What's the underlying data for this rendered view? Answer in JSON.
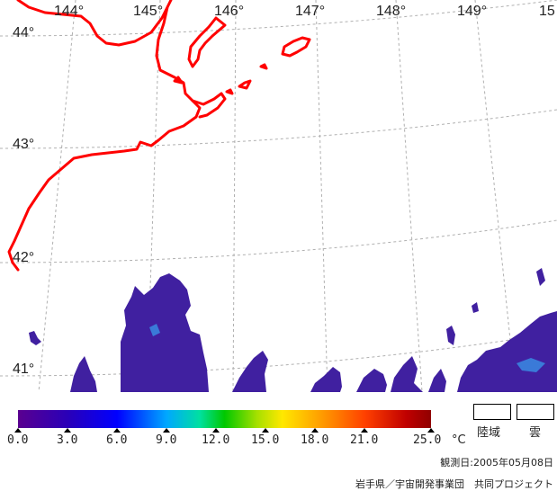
{
  "map": {
    "lon_labels": [
      "144°",
      "145°",
      "146°",
      "147°",
      "148°",
      "149°",
      "15"
    ],
    "lat_labels": [
      "44°",
      "43°",
      "42°",
      "41°"
    ],
    "coast_color": "#ff0000",
    "grid_color": "#b0b0b0",
    "sst_color": "#4020a0"
  },
  "legend": {
    "ticks": [
      "0.0",
      "3.0",
      "6.0",
      "9.0",
      "12.0",
      "15.0",
      "18.0",
      "21.0",
      "25.0"
    ],
    "unit": "°C",
    "key_land": "陸域",
    "key_cloud": "雲",
    "date_text": "観測日:2005年05月08日",
    "credit_text": "岩手県／宇宙開発事業団　共同プロジェクト"
  }
}
